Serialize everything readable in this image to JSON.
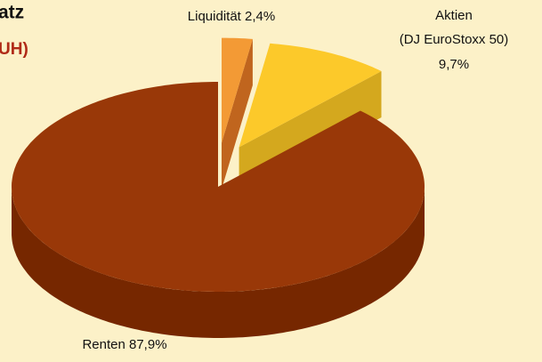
{
  "chart_data": {
    "type": "pie",
    "title": "atz",
    "subtitle": "UH)",
    "categories": [
      "Liquidität",
      "Aktien (DJ EuroStoxx 50)",
      "Renten"
    ],
    "values": [
      2.4,
      9.7,
      87.9
    ],
    "value_labels": [
      "2,4%",
      "9,7%",
      "87,9%"
    ],
    "colors": [
      "#f39a35",
      "#fcc92a",
      "#993808"
    ],
    "side_colors": [
      "#c0651e",
      "#d4a81e",
      "#762700"
    ],
    "exploded": [
      true,
      true,
      false
    ]
  }
}
